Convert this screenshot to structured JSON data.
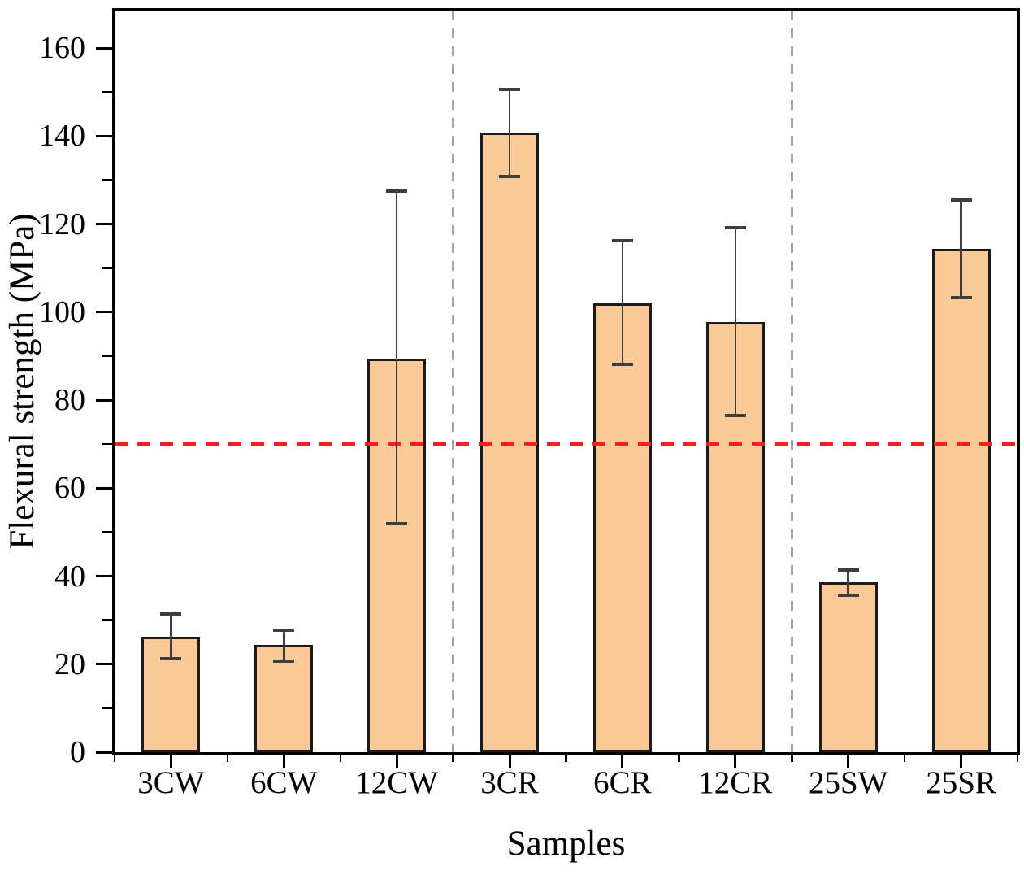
{
  "figure": {
    "background": "#ffffff"
  },
  "chart_data": {
    "type": "bar",
    "xlabel": "Samples",
    "ylabel": "Flexural strength (MPa)",
    "categories": [
      "3CW",
      "6CW",
      "12CW",
      "3CR",
      "6CR",
      "12CR",
      "25SW",
      "25SR"
    ],
    "values": [
      26.3,
      24.3,
      89.5,
      140.7,
      102.0,
      97.8,
      38.6,
      114.4
    ],
    "error_plus": [
      5.1,
      3.4,
      38.0,
      9.9,
      14.3,
      21.3,
      2.7,
      11.0
    ],
    "error_minus": [
      5.0,
      3.6,
      37.5,
      9.8,
      13.9,
      21.4,
      3.0,
      11.1
    ],
    "ylim": [
      0,
      168.5
    ],
    "y_major_ticks": [
      0,
      20,
      40,
      60,
      80,
      100,
      120,
      140,
      160
    ],
    "y_major_tick_labels": [
      "0",
      "20",
      "40",
      "60",
      "80",
      "100",
      "120",
      "140",
      "160"
    ],
    "y_minor_ticks": [
      10,
      30,
      50,
      70,
      90,
      110,
      130,
      150
    ],
    "reference_line": {
      "value": 70,
      "color": "#f71f1f",
      "style": "dashed"
    },
    "group_separators": {
      "after_category_index": [
        2,
        5
      ],
      "color": "#a3a3a3",
      "style": "dashed"
    },
    "bar_fill": "#fbc997",
    "bar_border": "#1b1b1b",
    "error_color": "#3d3d3d",
    "grid": false,
    "legend": false
  }
}
